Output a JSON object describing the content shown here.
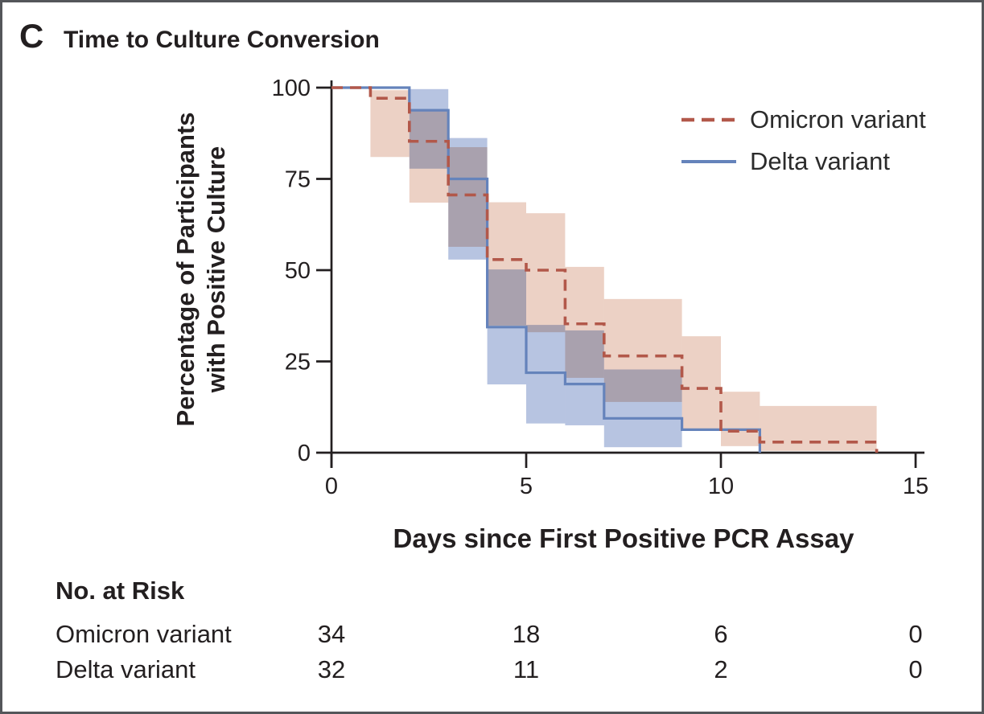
{
  "panel": {
    "label": "C",
    "title": "Time to Culture Conversion"
  },
  "axes": {
    "x": {
      "label": "Days since First Positive PCR Assay",
      "ticks": [
        0,
        5,
        10,
        15
      ],
      "range": [
        0,
        15
      ]
    },
    "y": {
      "label_line1": "Percentage of Participants",
      "label_line2": "with Positive Culture",
      "ticks": [
        0,
        25,
        50,
        75,
        100
      ],
      "range": [
        0,
        100
      ]
    }
  },
  "chart_data": {
    "type": "line",
    "subtype": "kaplan-meier-step-with-confidence-bands",
    "title": "Time to Culture Conversion",
    "xlabel": "Days since First Positive PCR Assay",
    "ylabel": "Percentage of Participants with Positive Culture",
    "xlim": [
      0,
      15
    ],
    "ylim": [
      0,
      100
    ],
    "xticks": [
      0,
      5,
      10,
      15
    ],
    "yticks": [
      0,
      25,
      50,
      75,
      100
    ],
    "grid": false,
    "legend_position": "upper right",
    "series": [
      {
        "name": "Omicron variant",
        "line_style": "dashed",
        "line_color": "#b2584a",
        "band_color": "#ecd1c5",
        "steps_x_day": [
          0,
          1,
          2,
          3,
          4,
          5,
          6,
          7,
          9,
          10,
          11,
          14
        ],
        "steps_y_pct": [
          100,
          97.1,
          85.3,
          70.6,
          52.9,
          50.0,
          35.3,
          26.5,
          17.6,
          5.9,
          2.9,
          0
        ],
        "ci_band": [
          [
            1,
            2,
            81.0,
            99.3
          ],
          [
            2,
            3,
            68.5,
            93.9
          ],
          [
            3,
            4,
            56.4,
            83.7
          ],
          [
            4,
            5,
            34.8,
            68.6
          ],
          [
            5,
            6,
            33.0,
            65.6
          ],
          [
            6,
            7,
            20.5,
            50.9
          ],
          [
            7,
            9,
            13.9,
            42.1
          ],
          [
            9,
            10,
            6.6,
            31.9
          ],
          [
            10,
            11,
            1.8,
            16.7
          ],
          [
            11,
            14,
            0.5,
            12.8
          ]
        ]
      },
      {
        "name": "Delta variant",
        "line_style": "solid",
        "line_color": "#6583bb",
        "band_color": "#b7c4e1",
        "steps_x_day": [
          0,
          2,
          3,
          4,
          5,
          6,
          7,
          9,
          11
        ],
        "steps_y_pct": [
          100,
          93.8,
          75.0,
          34.4,
          21.9,
          18.8,
          9.4,
          6.3,
          0
        ],
        "ci_band": [
          [
            2,
            3,
            77.8,
            99.6
          ],
          [
            3,
            4,
            52.9,
            86.2
          ],
          [
            4,
            5,
            18.7,
            50.2
          ],
          [
            5,
            6,
            8.0,
            35.0
          ],
          [
            6,
            7,
            7.5,
            33.5
          ],
          [
            7,
            9,
            1.5,
            22.8
          ]
        ]
      }
    ]
  },
  "risk_table": {
    "header": "No. at Risk",
    "days": [
      0,
      5,
      10,
      15
    ],
    "rows": [
      {
        "label": "Omicron variant",
        "values": [
          34,
          18,
          6,
          0
        ]
      },
      {
        "label": "Delta variant",
        "values": [
          32,
          11,
          2,
          0
        ]
      }
    ]
  },
  "colors": {
    "axis": "#231f20",
    "text": "#231f20",
    "frame": "#54565a",
    "background": "#ffffff"
  }
}
